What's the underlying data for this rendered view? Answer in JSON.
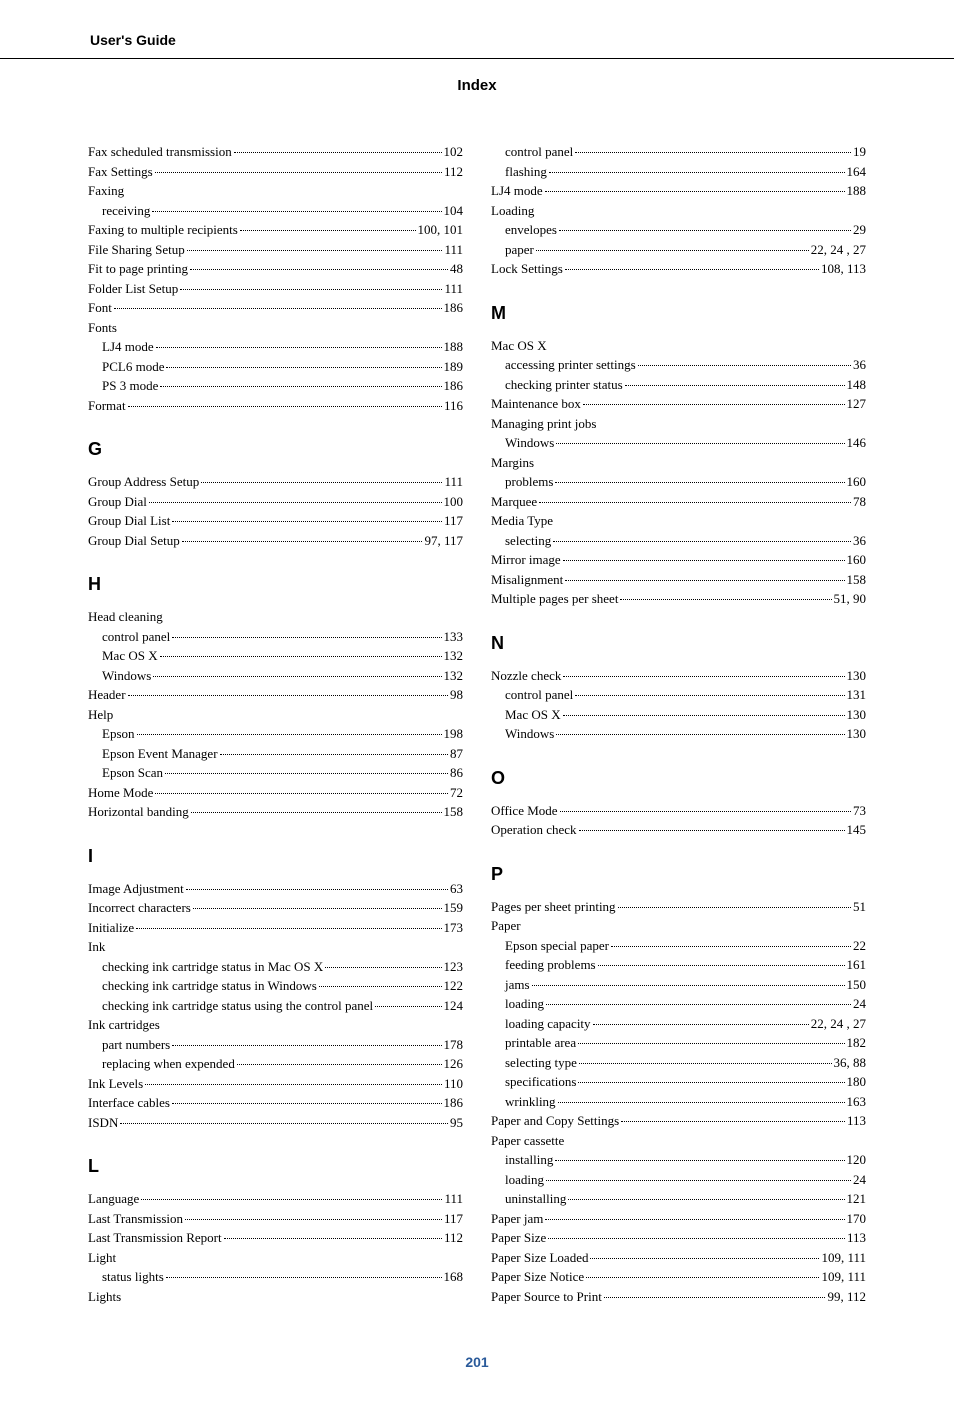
{
  "header": {
    "guide_label": "User's Guide",
    "title": "Index"
  },
  "page_number": "201",
  "left": {
    "initial": [
      {
        "label": "Fax scheduled transmission",
        "page": "102"
      },
      {
        "label": "Fax Settings",
        "page": "112"
      },
      {
        "label": "Faxing",
        "page": ""
      },
      {
        "label": "receiving",
        "page": "104",
        "sub": true
      },
      {
        "label": "Faxing to multiple recipients",
        "page": "100, 101"
      },
      {
        "label": "File Sharing Setup",
        "page": "111"
      },
      {
        "label": "Fit to page printing",
        "page": "48"
      },
      {
        "label": "Folder List Setup",
        "page": "111"
      },
      {
        "label": "Font",
        "page": "186"
      },
      {
        "label": "Fonts",
        "page": ""
      },
      {
        "label": "LJ4 mode",
        "page": "188",
        "sub": true
      },
      {
        "label": "PCL6 mode",
        "page": "189",
        "sub": true
      },
      {
        "label": "PS 3 mode",
        "page": "186",
        "sub": true
      },
      {
        "label": "Format",
        "page": "116"
      }
    ],
    "sections": [
      {
        "letter": "G",
        "entries": [
          {
            "label": "Group Address Setup",
            "page": "111"
          },
          {
            "label": "Group Dial",
            "page": "100"
          },
          {
            "label": "Group Dial List",
            "page": "117"
          },
          {
            "label": "Group Dial Setup",
            "page": "97, 117"
          }
        ]
      },
      {
        "letter": "H",
        "entries": [
          {
            "label": "Head cleaning",
            "page": ""
          },
          {
            "label": "control panel",
            "page": "133",
            "sub": true
          },
          {
            "label": "Mac OS X",
            "page": "132",
            "sub": true
          },
          {
            "label": "Windows",
            "page": "132",
            "sub": true
          },
          {
            "label": "Header",
            "page": "98"
          },
          {
            "label": "Help",
            "page": ""
          },
          {
            "label": "Epson",
            "page": "198",
            "sub": true
          },
          {
            "label": "Epson Event Manager",
            "page": "87",
            "sub": true
          },
          {
            "label": "Epson Scan",
            "page": "86",
            "sub": true
          },
          {
            "label": "Home Mode",
            "page": "72"
          },
          {
            "label": "Horizontal banding",
            "page": "158"
          }
        ]
      },
      {
        "letter": "I",
        "entries": [
          {
            "label": "Image Adjustment",
            "page": "63"
          },
          {
            "label": "Incorrect characters",
            "page": "159"
          },
          {
            "label": "Initialize",
            "page": "173"
          },
          {
            "label": "Ink",
            "page": ""
          },
          {
            "label": "checking ink cartridge status in Mac OS X",
            "page": "123",
            "sub": true
          },
          {
            "label": "checking ink cartridge status in Windows",
            "page": "122",
            "sub": true
          },
          {
            "label": "checking ink cartridge status using the control panel",
            "page": "124",
            "sub": true
          },
          {
            "label": "Ink cartridges",
            "page": ""
          },
          {
            "label": "part numbers",
            "page": "178",
            "sub": true
          },
          {
            "label": "replacing when expended",
            "page": "126",
            "sub": true
          },
          {
            "label": "Ink Levels",
            "page": "110"
          },
          {
            "label": "Interface cables",
            "page": "186"
          },
          {
            "label": "ISDN",
            "page": "95"
          }
        ]
      },
      {
        "letter": "L",
        "entries": [
          {
            "label": "Language",
            "page": "111"
          },
          {
            "label": "Last Transmission",
            "page": "117"
          },
          {
            "label": "Last Transmission Report",
            "page": "112"
          },
          {
            "label": "Light",
            "page": ""
          },
          {
            "label": "status lights",
            "page": "168",
            "sub": true
          },
          {
            "label": "Lights",
            "page": ""
          }
        ]
      }
    ]
  },
  "right": {
    "initial": [
      {
        "label": "control panel",
        "page": "19",
        "sub": true
      },
      {
        "label": "flashing",
        "page": "164",
        "sub": true
      },
      {
        "label": "LJ4 mode",
        "page": "188"
      },
      {
        "label": "Loading",
        "page": ""
      },
      {
        "label": "envelopes",
        "page": "29",
        "sub": true
      },
      {
        "label": "paper",
        "page": "22, 24 , 27",
        "sub": true
      },
      {
        "label": "Lock Settings",
        "page": "108, 113"
      }
    ],
    "sections": [
      {
        "letter": "M",
        "entries": [
          {
            "label": "Mac OS X",
            "page": ""
          },
          {
            "label": "accessing printer settings",
            "page": "36",
            "sub": true
          },
          {
            "label": "checking printer status",
            "page": "148",
            "sub": true
          },
          {
            "label": "Maintenance box",
            "page": "127"
          },
          {
            "label": "Managing print jobs",
            "page": ""
          },
          {
            "label": "Windows",
            "page": "146",
            "sub": true
          },
          {
            "label": "Margins",
            "page": ""
          },
          {
            "label": "problems",
            "page": "160",
            "sub": true
          },
          {
            "label": "Marquee",
            "page": "78"
          },
          {
            "label": "Media Type",
            "page": ""
          },
          {
            "label": "selecting",
            "page": "36",
            "sub": true
          },
          {
            "label": "Mirror image",
            "page": "160"
          },
          {
            "label": "Misalignment",
            "page": "158"
          },
          {
            "label": "Multiple pages per sheet",
            "page": "51, 90"
          }
        ]
      },
      {
        "letter": "N",
        "entries": [
          {
            "label": "Nozzle check",
            "page": "130"
          },
          {
            "label": "control panel",
            "page": "131",
            "sub": true
          },
          {
            "label": "Mac OS X",
            "page": "130",
            "sub": true
          },
          {
            "label": "Windows",
            "page": "130",
            "sub": true
          }
        ]
      },
      {
        "letter": "O",
        "entries": [
          {
            "label": "Office Mode",
            "page": "73"
          },
          {
            "label": "Operation check",
            "page": "145"
          }
        ]
      },
      {
        "letter": "P",
        "entries": [
          {
            "label": "Pages per sheet printing",
            "page": "51"
          },
          {
            "label": "Paper",
            "page": ""
          },
          {
            "label": "Epson special paper",
            "page": "22",
            "sub": true
          },
          {
            "label": "feeding problems",
            "page": "161",
            "sub": true
          },
          {
            "label": "jams",
            "page": "150",
            "sub": true
          },
          {
            "label": "loading",
            "page": "24",
            "sub": true
          },
          {
            "label": "loading capacity",
            "page": "22, 24 , 27",
            "sub": true
          },
          {
            "label": "printable area",
            "page": "182",
            "sub": true
          },
          {
            "label": "selecting type",
            "page": "36, 88",
            "sub": true
          },
          {
            "label": "specifications",
            "page": "180",
            "sub": true
          },
          {
            "label": "wrinkling",
            "page": "163",
            "sub": true
          },
          {
            "label": "Paper and Copy Settings",
            "page": "113"
          },
          {
            "label": "Paper cassette",
            "page": ""
          },
          {
            "label": "installing",
            "page": "120",
            "sub": true
          },
          {
            "label": "loading",
            "page": "24",
            "sub": true
          },
          {
            "label": "uninstalling",
            "page": "121",
            "sub": true
          },
          {
            "label": "Paper jam",
            "page": "170"
          },
          {
            "label": "Paper Size",
            "page": "113"
          },
          {
            "label": "Paper Size Loaded",
            "page": "109, 111"
          },
          {
            "label": "Paper Size Notice",
            "page": "109, 111"
          },
          {
            "label": "Paper Source to Print",
            "page": "99, 112"
          }
        ]
      }
    ]
  }
}
